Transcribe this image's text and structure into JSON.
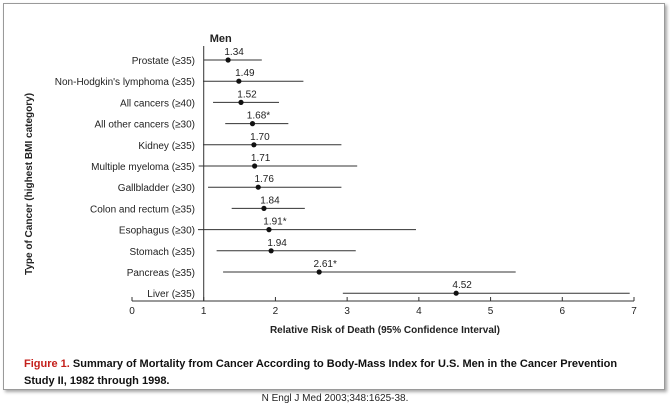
{
  "caption": {
    "figure_label": "Figure 1.",
    "text": " Summary of Mortality from Cancer According to Body-Mass Index for U.S. Men in the Cancer Prevention Study II, 1982 through 1998."
  },
  "citation": "N Engl J Med 2003;348:1625-38.",
  "chart_data": {
    "type": "forest",
    "title": "Men",
    "xlabel": "Relative Risk of Death (95% Confidence Interval)",
    "ylabel": "Type of Cancer (highest BMI category)",
    "xlim": [
      0,
      7
    ],
    "xticks": [
      "0",
      "1",
      "2",
      "3",
      "4",
      "5",
      "6",
      "7"
    ],
    "reference_line_x": 1,
    "grid": false,
    "rows": [
      {
        "label": "Prostate (≥35)",
        "rr": 1.34,
        "rr_label": "1.34",
        "ci": [
          1.0,
          1.81
        ]
      },
      {
        "label": "Non-Hodgkin's lymphoma (≥35)",
        "rr": 1.49,
        "rr_label": "1.49",
        "ci": [
          0.99,
          2.39
        ]
      },
      {
        "label": "All cancers (≥40)",
        "rr": 1.52,
        "rr_label": "1.52",
        "ci": [
          1.13,
          2.05
        ]
      },
      {
        "label": "All other cancers (≥30)",
        "rr": 1.68,
        "rr_label": "1.68*",
        "ci": [
          1.3,
          2.18
        ]
      },
      {
        "label": "Kidney (≥35)",
        "rr": 1.7,
        "rr_label": "1.70",
        "ci": [
          0.99,
          2.92
        ]
      },
      {
        "label": "Multiple myeloma (≥35)",
        "rr": 1.71,
        "rr_label": "1.71",
        "ci": [
          0.93,
          3.14
        ]
      },
      {
        "label": "Gallbladder (≥30)",
        "rr": 1.76,
        "rr_label": "1.76",
        "ci": [
          1.06,
          2.92
        ]
      },
      {
        "label": "Colon and rectum (≥35)",
        "rr": 1.84,
        "rr_label": "1.84",
        "ci": [
          1.39,
          2.41
        ]
      },
      {
        "label": "Esophagus (≥30)",
        "rr": 1.91,
        "rr_label": "1.91*",
        "ci": [
          0.92,
          3.96
        ]
      },
      {
        "label": "Stomach (≥35)",
        "rr": 1.94,
        "rr_label": "1.94",
        "ci": [
          1.18,
          3.12
        ]
      },
      {
        "label": "Pancreas (≥35)",
        "rr": 2.61,
        "rr_label": "2.61*",
        "ci": [
          1.27,
          5.35
        ]
      },
      {
        "label": "Liver (≥35)",
        "rr": 4.52,
        "rr_label": "4.52",
        "ci": [
          2.94,
          6.94
        ]
      }
    ]
  }
}
